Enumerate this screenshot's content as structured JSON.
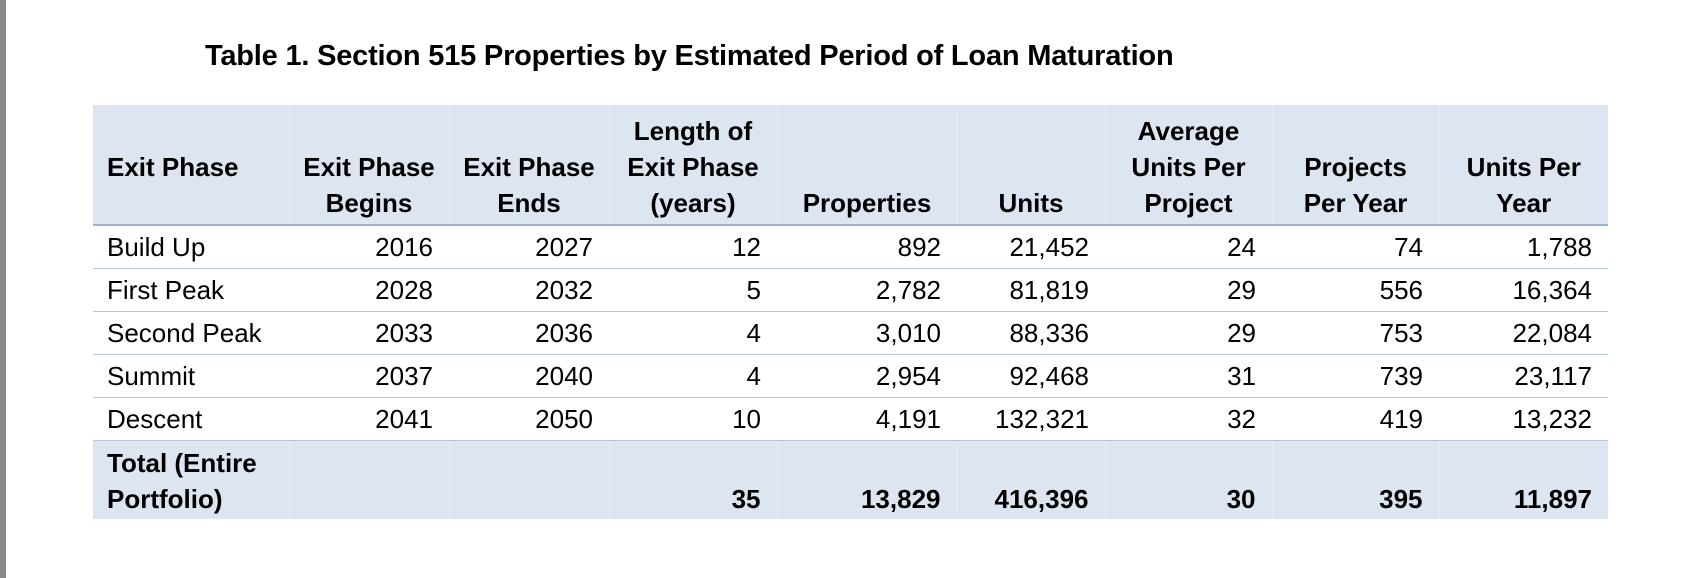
{
  "title": "Table 1. Section 515 Properties by Estimated Period of Loan Maturation",
  "headers": {
    "phase": "Exit Phase",
    "begins": "Exit Phase Begins",
    "ends": "Exit Phase Ends",
    "length": "Length of Exit Phase (years)",
    "properties": "Properties",
    "units": "Units",
    "avg_units": "Average Units Per Project",
    "projects_per_year": "Projects Per Year",
    "units_per_year": "Units Per Year"
  },
  "rows": [
    {
      "phase": "Build Up",
      "begins": "2016",
      "ends": "2027",
      "length": "12",
      "properties": "892",
      "units": "21,452",
      "avg_units": "24",
      "projects_per_year": "74",
      "units_per_year": "1,788"
    },
    {
      "phase": "First Peak",
      "begins": "2028",
      "ends": "2032",
      "length": "5",
      "properties": "2,782",
      "units": "81,819",
      "avg_units": "29",
      "projects_per_year": "556",
      "units_per_year": "16,364"
    },
    {
      "phase": "Second Peak",
      "begins": "2033",
      "ends": "2036",
      "length": "4",
      "properties": "3,010",
      "units": "88,336",
      "avg_units": "29",
      "projects_per_year": "753",
      "units_per_year": "22,084"
    },
    {
      "phase": "Summit",
      "begins": "2037",
      "ends": "2040",
      "length": "4",
      "properties": "2,954",
      "units": "92,468",
      "avg_units": "31",
      "projects_per_year": "739",
      "units_per_year": "23,117"
    },
    {
      "phase": "Descent",
      "begins": "2041",
      "ends": "2050",
      "length": "10",
      "properties": "4,191",
      "units": "132,321",
      "avg_units": "32",
      "projects_per_year": "419",
      "units_per_year": "13,232"
    }
  ],
  "total": {
    "phase": "Total (Entire Portfolio)",
    "begins": "",
    "ends": "",
    "length": "35",
    "properties": "13,829",
    "units": "416,396",
    "avg_units": "30",
    "projects_per_year": "395",
    "units_per_year": "11,897"
  }
}
